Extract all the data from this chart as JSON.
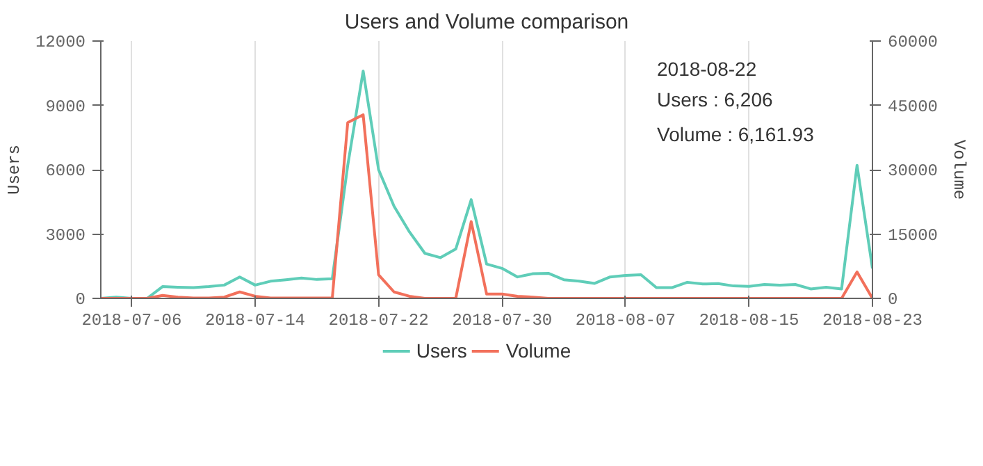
{
  "chart_data": {
    "type": "line",
    "title": "Users and Volume comparison",
    "ylabel": "Users",
    "y2label": "Volume",
    "x": [
      "2018-07-04",
      "2018-07-05",
      "2018-07-06",
      "2018-07-07",
      "2018-07-08",
      "2018-07-09",
      "2018-07-10",
      "2018-07-11",
      "2018-07-12",
      "2018-07-13",
      "2018-07-14",
      "2018-07-15",
      "2018-07-16",
      "2018-07-17",
      "2018-07-18",
      "2018-07-19",
      "2018-07-20",
      "2018-07-21",
      "2018-07-22",
      "2018-07-23",
      "2018-07-24",
      "2018-07-25",
      "2018-07-26",
      "2018-07-27",
      "2018-07-28",
      "2018-07-29",
      "2018-07-30",
      "2018-07-31",
      "2018-08-01",
      "2018-08-02",
      "2018-08-03",
      "2018-08-04",
      "2018-08-05",
      "2018-08-06",
      "2018-08-07",
      "2018-08-08",
      "2018-08-09",
      "2018-08-10",
      "2018-08-11",
      "2018-08-12",
      "2018-08-13",
      "2018-08-14",
      "2018-08-15",
      "2018-08-16",
      "2018-08-17",
      "2018-08-18",
      "2018-08-19",
      "2018-08-20",
      "2018-08-21",
      "2018-08-22",
      "2018-08-23"
    ],
    "series": [
      {
        "name": "Users",
        "color": "#5fcdb8",
        "values": [
          0,
          60,
          0,
          0,
          550,
          520,
          500,
          550,
          620,
          1000,
          620,
          800,
          870,
          950,
          880,
          920,
          6200,
          10600,
          6000,
          4300,
          3100,
          2100,
          1900,
          2300,
          4600,
          1600,
          1400,
          1000,
          1150,
          1170,
          870,
          800,
          700,
          1000,
          1070,
          1100,
          500,
          500,
          750,
          670,
          690,
          580,
          560,
          650,
          620,
          650,
          440,
          520,
          440,
          6206,
          1400
        ]
      },
      {
        "name": "Volume",
        "color": "#f2705b",
        "axis": "y2",
        "values": [
          0,
          0,
          0,
          0,
          700,
          300,
          100,
          100,
          300,
          1500,
          500,
          100,
          100,
          100,
          100,
          100,
          41000,
          42800,
          5500,
          1500,
          500,
          0,
          0,
          0,
          17900,
          1000,
          1000,
          500,
          300,
          0,
          0,
          0,
          0,
          0,
          0,
          0,
          0,
          0,
          0,
          0,
          0,
          0,
          0,
          0,
          0,
          0,
          0,
          0,
          0,
          6161.93,
          0
        ]
      }
    ],
    "xlim": [
      "2018-07-04",
      "2018-08-23"
    ],
    "xticks": [
      "2018-07-06",
      "2018-07-14",
      "2018-07-22",
      "2018-07-30",
      "2018-08-07",
      "2018-08-15",
      "2018-08-23"
    ],
    "ylim": [
      0,
      12000
    ],
    "yticks": [
      0,
      3000,
      6000,
      9000,
      12000
    ],
    "y2lim": [
      0,
      60000
    ],
    "y2ticks": [
      0,
      15000,
      30000,
      45000,
      60000
    ],
    "grid": "x",
    "legend": "bottom",
    "marker": "none",
    "line_style": "solid",
    "annotations": [
      "2018-08-22",
      "Users : 6,206",
      "Volume : 6,161.93"
    ]
  }
}
